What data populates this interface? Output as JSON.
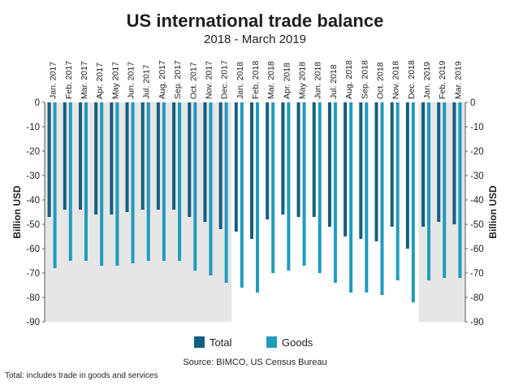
{
  "chart_data": {
    "type": "bar",
    "title": "US international trade balance",
    "subtitle": "2018 - March 2019",
    "ylabel": "Billion USD",
    "ylabel_right": "Billion USD",
    "ylim": [
      -90,
      0
    ],
    "yticks": [
      0,
      -10,
      -20,
      -30,
      -40,
      -50,
      -60,
      -70,
      -80,
      -90
    ],
    "grid": false,
    "legend_position": "bottom",
    "categories": [
      "Jan. 2017",
      "Feb. 2017",
      "Mar. 2017",
      "Apr. 2017",
      "May 2017",
      "Jun. 2017",
      "Jul. 2017",
      "Aug. 2017",
      "Sep. 2017",
      "Oct. 2017",
      "Nov. 2017",
      "Dec. 2017",
      "Jan. 2018",
      "Feb. 2018",
      "Mar. 2018",
      "Apr. 2018",
      "May 2018",
      "Jun. 2018",
      "Jul. 2018",
      "Aug. 2018",
      "Sep. 2018",
      "Oct. 2018",
      "Nov. 2018",
      "Dec. 2018",
      "Jan. 2019",
      "Feb. 2019",
      "Mar. 2019"
    ],
    "shaded_categories": [
      "Jan. 2017",
      "Feb. 2017",
      "Mar. 2017",
      "Apr. 2017",
      "May 2017",
      "Jun. 2017",
      "Jul. 2017",
      "Aug. 2017",
      "Sep. 2017",
      "Oct. 2017",
      "Nov. 2017",
      "Dec. 2017",
      "Jan. 2019",
      "Feb. 2019",
      "Mar. 2019"
    ],
    "series": [
      {
        "name": "Total",
        "color": "#135f7f",
        "values": [
          -47,
          -44,
          -44,
          -46,
          -46,
          -45,
          -44,
          -44,
          -44,
          -47,
          -49,
          -52,
          -53,
          -56,
          -48,
          -46,
          -47,
          -47,
          -51,
          -55,
          -56,
          -57,
          -51,
          -60,
          -51,
          -49,
          -50
        ]
      },
      {
        "name": "Goods",
        "color": "#1f9bbf",
        "values": [
          -68,
          -65,
          -65,
          -67,
          -67,
          -66,
          -65,
          -65,
          -65,
          -69,
          -71,
          -74,
          -76,
          -78,
          -70,
          -69,
          -67,
          -70,
          -74,
          -78,
          -78,
          -79,
          -73,
          -82,
          -73,
          -72,
          -72
        ]
      }
    ],
    "source": "Source: BIMCO, US Census Bureau",
    "note": "Total: includes trade in goods and services"
  }
}
